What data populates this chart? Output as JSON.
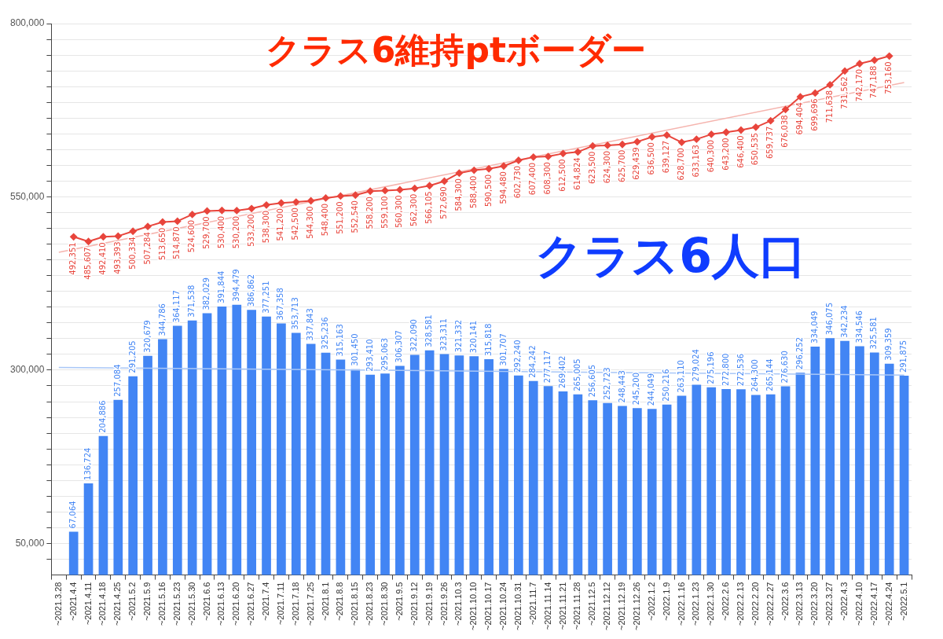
{
  "chart_data": {
    "type": "bar",
    "annotations": [
      "クラス6維持ptボーダー",
      "クラス6人口"
    ],
    "categories": [
      "~2021.3.28",
      "~2021.4.4",
      "~2021.4.11",
      "~2021.4.18",
      "~2021.4.25",
      "~2021.5.2",
      "~2021.5.9",
      "~2021.5.16",
      "~2021.5.23",
      "~2021.5.30",
      "~2021.6.6",
      "~2021.6.13",
      "~2021.6.20",
      "~2021.6.27",
      "~2021.7.4",
      "~2021.7.11",
      "~2021.7.18",
      "~2021.7.25",
      "~2021.8.1",
      "~2021.8.8",
      "~2021.8.15",
      "~2021.8.23",
      "~2021.8.30",
      "~2021.9.5",
      "~2021.9.12",
      "~2021.9.19",
      "~2021.9.26",
      "~2021.10.3",
      "~2021.10.10",
      "~2021.10.17",
      "~2021.10.24",
      "~2021.10.31",
      "~2021.11.7",
      "~2021.11.14",
      "~2021.11.21",
      "~2021.11.28",
      "~2021.12.5",
      "~2021.12.12",
      "~2021.12.19",
      "~2021.12.26",
      "~2022.1.2",
      "~2022.1.9",
      "~2022.1.16",
      "~2022.1.23",
      "~2022.1.30",
      "~2022.2.6",
      "~2022.2.13",
      "~2022.2.20",
      "~2022.2.27",
      "~2022.3.6",
      "~2022.3.13",
      "~2022.3.20",
      "~2022.3.27",
      "~2022.4.3",
      "~2022.4.10",
      "~2022.4.17",
      "~2022.4.24",
      "~2022.5.1"
    ],
    "series": [
      {
        "color": "#4285f4",
        "values": [
          null,
          67064,
          136724,
          204886,
          257084,
          291205,
          320679,
          344786,
          364117,
          371538,
          382029,
          391844,
          394479,
          386862,
          377251,
          367358,
          353713,
          337843,
          325236,
          315163,
          301450,
          293410,
          295063,
          306307,
          322090,
          328581,
          323311,
          321332,
          320141,
          315818,
          301707,
          292240,
          284242,
          277117,
          269402,
          265005,
          256605,
          252723,
          248443,
          245200,
          244049,
          250216,
          263110,
          279024,
          275196,
          272800,
          272536,
          264300,
          265144,
          276630,
          296252,
          334049,
          346075,
          342234,
          334546,
          325581,
          309359,
          291875
        ],
        "value_labels": [
          null,
          "67,064",
          "136,724",
          "204,886",
          "257,084",
          "291,205",
          "320,679",
          "344,786",
          "364,117",
          "371,538",
          "382,029",
          "391,844",
          "394,479",
          "386,862",
          "377,251",
          "367,358",
          "353,713",
          "337,843",
          "325,236",
          "315,163",
          "301,450",
          "293,410",
          "295,063",
          "306,307",
          "322,090",
          "328,581",
          "323,311",
          "321,332",
          "320,141",
          "315,818",
          "301,707",
          "292,240",
          "284,242",
          "277,117",
          "269,402",
          "265,005",
          "256,605",
          "252,723",
          "248,443",
          "245,200",
          "244,049",
          "250,216",
          "263,110",
          "279,024",
          "275,196",
          "272,800",
          "272,536",
          "264,300",
          "265,144",
          "276,630",
          "296,252",
          "334,049",
          "346,075",
          "342,234",
          "334,546",
          "325,581",
          "309,359",
          "291,875"
        ]
      },
      {
        "type": "line",
        "color": "#e8453c",
        "values": [
          null,
          492351,
          485607,
          492410,
          493393,
          500334,
          507284,
          513650,
          514870,
          524600,
          529700,
          530400,
          530200,
          533200,
          538300,
          541200,
          542500,
          544300,
          548400,
          551200,
          552540,
          558200,
          559100,
          560300,
          562300,
          566105,
          572690,
          584300,
          588400,
          590500,
          594480,
          602730,
          607400,
          608300,
          612500,
          614824,
          623500,
          624300,
          625700,
          629439,
          636500,
          639127,
          628700,
          633163,
          640300,
          643200,
          646400,
          650535,
          659737,
          676038,
          694404,
          699696,
          711638,
          731562,
          742170,
          747188,
          753160,
          null
        ],
        "value_labels": [
          null,
          "492,351",
          "485,607",
          "492,410",
          "493,393",
          "500,334",
          "507,284",
          "513,650",
          "514,870",
          "524,600",
          "529,700",
          "530,400",
          "530,200",
          "533,200",
          "538,300",
          "541,200",
          "542,500",
          "544,300",
          "548,400",
          "551,200",
          "552,540",
          "558,200",
          "559,100",
          "560,300",
          "562,300",
          "566,105",
          "572,690",
          "584,300",
          "588,400",
          "590,500",
          "594,480",
          "602,730",
          "607,400",
          "608,300",
          "612,500",
          "614,824",
          "623,500",
          "624,300",
          "625,700",
          "629,439",
          "636,500",
          "639,127",
          "628,700",
          "633,163",
          "640,300",
          "643,200",
          "646,400",
          "650,535",
          "659,737",
          "676,038",
          "694,404",
          "699,696",
          "711,638",
          "731,562",
          "742,170",
          "747,188",
          "753,160",
          null
        ]
      },
      {
        "type": "line",
        "color": "#f5b4ae",
        "marker": "none",
        "values": [
          470000,
          null,
          null,
          null,
          null,
          null,
          null,
          null,
          null,
          null,
          null,
          null,
          null,
          null,
          null,
          null,
          null,
          null,
          null,
          null,
          null,
          null,
          null,
          null,
          null,
          null,
          null,
          null,
          null,
          null,
          null,
          null,
          null,
          null,
          null,
          null,
          null,
          null,
          null,
          null,
          null,
          null,
          null,
          null,
          null,
          null,
          null,
          null,
          null,
          null,
          null,
          null,
          null,
          null,
          null,
          null,
          null,
          715000
        ]
      },
      {
        "type": "line",
        "color": "#a9c7f7",
        "marker": "none",
        "values": [
          304000,
          null,
          null,
          null,
          null,
          null,
          null,
          null,
          null,
          null,
          null,
          null,
          null,
          null,
          null,
          null,
          null,
          null,
          null,
          null,
          null,
          null,
          null,
          null,
          null,
          null,
          null,
          null,
          null,
          null,
          null,
          null,
          null,
          null,
          null,
          null,
          null,
          null,
          null,
          null,
          null,
          null,
          null,
          null,
          null,
          null,
          null,
          null,
          null,
          null,
          null,
          null,
          null,
          null,
          null,
          null,
          null,
          293000
        ]
      }
    ],
    "ylim": [
      4545,
      800000
    ],
    "yticks": [
      {
        "value": 27273,
        "label": null
      },
      {
        "value": 50000,
        "label": "50,000"
      },
      {
        "value": 72727,
        "label": null
      },
      {
        "value": 95455,
        "label": null
      },
      {
        "value": 118182,
        "label": null
      },
      {
        "value": 140909,
        "label": null
      },
      {
        "value": 163636,
        "label": null
      },
      {
        "value": 186364,
        "label": null
      },
      {
        "value": 209091,
        "label": null
      },
      {
        "value": 231818,
        "label": null
      },
      {
        "value": 254545,
        "label": null
      },
      {
        "value": 277273,
        "label": null
      },
      {
        "value": 300000,
        "label": "300,000"
      },
      {
        "value": 322727,
        "label": null
      },
      {
        "value": 345455,
        "label": null
      },
      {
        "value": 368182,
        "label": null
      },
      {
        "value": 390909,
        "label": null
      },
      {
        "value": 413636,
        "label": null
      },
      {
        "value": 436364,
        "label": null
      },
      {
        "value": 459091,
        "label": null
      },
      {
        "value": 481818,
        "label": null
      },
      {
        "value": 504545,
        "label": null
      },
      {
        "value": 527273,
        "label": null
      },
      {
        "value": 550000,
        "label": "550,000"
      },
      {
        "value": 572727,
        "label": null
      },
      {
        "value": 595455,
        "label": null
      },
      {
        "value": 618182,
        "label": null
      },
      {
        "value": 640909,
        "label": null
      },
      {
        "value": 663636,
        "label": null
      },
      {
        "value": 686364,
        "label": null
      },
      {
        "value": 709091,
        "label": null
      },
      {
        "value": 731818,
        "label": null
      },
      {
        "value": 754545,
        "label": null
      },
      {
        "value": 777273,
        "label": null
      },
      {
        "value": 800000,
        "label": "800,000"
      }
    ],
    "grid": "y",
    "marker": "diamond"
  }
}
